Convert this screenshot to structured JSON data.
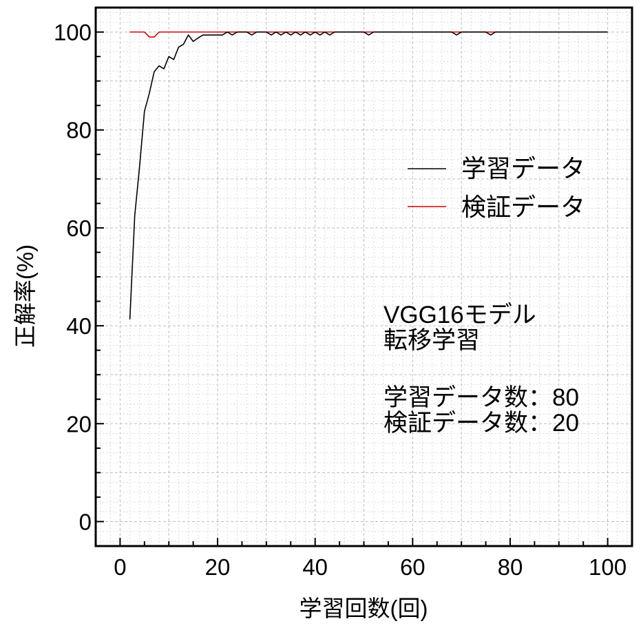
{
  "chart_data": {
    "type": "line",
    "xlabel": "学習回数(回)",
    "ylabel": "正解率(%)",
    "xlim": [
      -5,
      105
    ],
    "ylim": [
      -5,
      105
    ],
    "xticks": [
      0,
      20,
      40,
      60,
      80,
      100
    ],
    "yticks": [
      0,
      20,
      40,
      60,
      80,
      100
    ],
    "grid": true,
    "legend_position": "upper-right",
    "series": [
      {
        "name": "学習データ",
        "color": "#000000",
        "x": [
          2,
          3,
          4,
          5,
          6,
          7,
          8,
          9,
          10,
          11,
          12,
          13,
          14,
          15,
          16,
          17,
          18,
          19,
          20,
          21,
          22,
          23,
          24,
          25,
          26,
          27,
          28,
          29,
          30,
          31,
          32,
          33,
          34,
          35,
          36,
          37,
          38,
          39,
          40,
          41,
          42,
          43,
          44,
          45,
          50,
          51,
          52,
          60,
          68,
          69,
          70,
          75,
          76,
          77,
          80,
          90,
          100
        ],
        "y": [
          41.3,
          62.5,
          72.5,
          83.8,
          87.5,
          91.9,
          93.1,
          92.5,
          95.0,
          94.4,
          96.9,
          97.5,
          99.4,
          98.1,
          98.8,
          99.4,
          99.4,
          99.4,
          99.4,
          99.4,
          100,
          99.4,
          100,
          100,
          100,
          99.4,
          100,
          100,
          100,
          99.4,
          100,
          99.4,
          100,
          99.4,
          100,
          99.4,
          100,
          99.4,
          100,
          99.4,
          100,
          99.4,
          100,
          100,
          100,
          99.4,
          100,
          100,
          100,
          99.4,
          100,
          100,
          99.4,
          100,
          100,
          100,
          100
        ]
      },
      {
        "name": "検証データ",
        "color": "#cc0000",
        "x": [
          2,
          3,
          4,
          5,
          6,
          7,
          8,
          9,
          100
        ],
        "y": [
          100,
          100,
          100,
          100,
          99.0,
          99.0,
          100,
          100,
          100
        ]
      }
    ],
    "annotation": {
      "lines": [
        "VGG16モデル",
        "転移学習",
        "",
        "学習データ数：80",
        "検証データ数：20"
      ]
    }
  }
}
